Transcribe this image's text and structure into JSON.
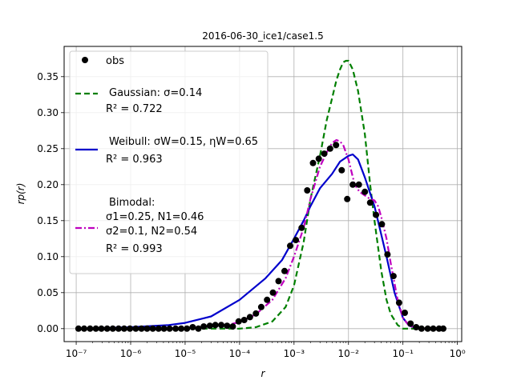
{
  "chart_data": {
    "type": "line",
    "title": "2016-06-30_ice1/case1.5",
    "xlabel": "r",
    "ylabel": "rp(r)",
    "x_scale": "log",
    "xlim": [
      6e-08,
      1.2
    ],
    "ylim": [
      -0.018,
      0.392
    ],
    "grid": true,
    "legend_position": "upper-left",
    "x_ticks": [
      {
        "value": 1e-07,
        "label": "10⁻⁷"
      },
      {
        "value": 1e-06,
        "label": "10⁻⁶"
      },
      {
        "value": 1e-05,
        "label": "10⁻⁵"
      },
      {
        "value": 0.0001,
        "label": "10⁻⁴"
      },
      {
        "value": 0.001,
        "label": "10⁻³"
      },
      {
        "value": 0.01,
        "label": "10⁻²"
      },
      {
        "value": 0.1,
        "label": "10⁻¹"
      },
      {
        "value": 1,
        "label": "10⁰"
      }
    ],
    "y_ticks": [
      {
        "value": 0.0,
        "label": "0.00"
      },
      {
        "value": 0.05,
        "label": "0.05"
      },
      {
        "value": 0.1,
        "label": "0.10"
      },
      {
        "value": 0.15,
        "label": "0.15"
      },
      {
        "value": 0.2,
        "label": "0.20"
      },
      {
        "value": 0.25,
        "label": "0.25"
      },
      {
        "value": 0.3,
        "label": "0.30"
      },
      {
        "value": 0.35,
        "label": "0.35"
      }
    ],
    "series": [
      {
        "name": "obs",
        "kind": "points",
        "color": "#000000",
        "x": [
          1.1e-07,
          1.4e-07,
          1.8e-07,
          2.3e-07,
          2.9e-07,
          3.7e-07,
          4.7e-07,
          6e-07,
          7.6e-07,
          9.7e-07,
          1.24e-06,
          1.58e-06,
          2e-06,
          2.55e-06,
          3.25e-06,
          4.1e-06,
          5.2e-06,
          6.7e-06,
          8.5e-06,
          1.08e-05,
          1.38e-05,
          1.75e-05,
          2.2e-05,
          2.85e-05,
          3.6e-05,
          4.6e-05,
          5.9e-05,
          7.5e-05,
          9.6e-05,
          0.000122,
          0.000155,
          0.0002,
          0.00025,
          0.00032,
          0.00041,
          0.00052,
          0.00067,
          0.00085,
          0.00108,
          0.00138,
          0.00175,
          0.00223,
          0.00285,
          0.0036,
          0.0046,
          0.0059,
          0.0075,
          0.0095,
          0.012,
          0.0155,
          0.02,
          0.025,
          0.032,
          0.041,
          0.052,
          0.067,
          0.085,
          0.108,
          0.138,
          0.175,
          0.22,
          0.285,
          0.36,
          0.46,
          0.55
        ],
        "y": [
          0.0,
          0.0,
          0.0,
          0.0,
          0.0,
          0.0,
          0.0,
          0.0,
          0.0,
          0.0,
          0.0,
          0.0,
          0.0,
          0.0,
          0.0,
          0.0,
          0.0,
          0.0,
          0.0,
          0.0,
          0.002,
          0.0,
          0.003,
          0.004,
          0.005,
          0.005,
          0.004,
          0.003,
          0.01,
          0.012,
          0.016,
          0.021,
          0.03,
          0.04,
          0.05,
          0.066,
          0.08,
          0.115,
          0.123,
          0.14,
          0.192,
          0.23,
          0.236,
          0.243,
          0.25,
          0.255,
          0.22,
          0.18,
          0.2,
          0.2,
          0.19,
          0.175,
          0.158,
          0.145,
          0.103,
          0.073,
          0.036,
          0.022,
          0.007,
          0.002,
          0.0,
          0.0,
          0.0,
          0.0,
          0.0
        ]
      },
      {
        "name": "Gaussian",
        "kind": "line",
        "dash": "dashed",
        "color": "#007f00",
        "x": [
          1.1e-07,
          1e-06,
          1e-05,
          5e-05,
          0.0001,
          0.0002,
          0.0004,
          0.0007,
          0.001,
          0.0015,
          0.002,
          0.003,
          0.004,
          0.005,
          0.006,
          0.007,
          0.008,
          0.009,
          0.01,
          0.012,
          0.015,
          0.02,
          0.025,
          0.03,
          0.04,
          0.05,
          0.06,
          0.08,
          0.1,
          0.13,
          0.2,
          0.3,
          0.55
        ],
        "y": [
          0.0,
          0.0,
          0.0,
          0.0,
          0.0,
          0.002,
          0.01,
          0.03,
          0.06,
          0.12,
          0.18,
          0.24,
          0.29,
          0.32,
          0.345,
          0.36,
          0.37,
          0.372,
          0.372,
          0.36,
          0.33,
          0.27,
          0.2,
          0.15,
          0.08,
          0.04,
          0.02,
          0.005,
          0.0,
          0.0,
          0.0,
          0.0,
          0.0
        ]
      },
      {
        "name": "Weibull",
        "kind": "line",
        "dash": "solid",
        "color": "#0000cc",
        "x": [
          1.1e-07,
          1e-06,
          5e-06,
          1e-05,
          3e-05,
          0.0001,
          0.0003,
          0.0006,
          0.001,
          0.0015,
          0.002,
          0.003,
          0.005,
          0.007,
          0.01,
          0.012,
          0.015,
          0.02,
          0.03,
          0.05,
          0.07,
          0.1,
          0.13,
          0.2,
          0.3,
          0.5
        ],
        "y": [
          0.0,
          0.002,
          0.005,
          0.008,
          0.017,
          0.04,
          0.07,
          0.095,
          0.125,
          0.15,
          0.17,
          0.195,
          0.215,
          0.232,
          0.24,
          0.242,
          0.235,
          0.21,
          0.17,
          0.1,
          0.05,
          0.015,
          0.004,
          0.0,
          0.0,
          0.0
        ]
      },
      {
        "name": "Bimodal",
        "kind": "line",
        "dash": "dashdot",
        "color": "#bf00bf",
        "x": [
          1.1e-07,
          1e-06,
          1e-05,
          5e-05,
          0.0001,
          0.0002,
          0.0004,
          0.0007,
          0.001,
          0.0015,
          0.002,
          0.003,
          0.004,
          0.005,
          0.006,
          0.007,
          0.008,
          0.01,
          0.013,
          0.016,
          0.02,
          0.025,
          0.03,
          0.035,
          0.04,
          0.05,
          0.06,
          0.08,
          0.1,
          0.13,
          0.2,
          0.3,
          0.55
        ],
        "y": [
          0.0,
          0.0,
          0.001,
          0.004,
          0.009,
          0.02,
          0.04,
          0.07,
          0.1,
          0.14,
          0.18,
          0.225,
          0.245,
          0.258,
          0.262,
          0.26,
          0.255,
          0.235,
          0.2,
          0.19,
          0.185,
          0.18,
          0.178,
          0.17,
          0.155,
          0.125,
          0.09,
          0.04,
          0.015,
          0.004,
          0.0,
          0.0,
          0.0
        ]
      }
    ]
  },
  "legend": {
    "obs": "obs",
    "gaussian": {
      "line1": "Gaussian: σ=0.14",
      "line2": "R² = 0.722"
    },
    "weibull": {
      "line1": "Weibull: σW=0.15, ηW=0.65",
      "line2": "R² = 0.963"
    },
    "bimodal": {
      "line1": "Bimodal:",
      "line2": "σ1=0.25, N1=0.46",
      "line3": "σ2=0.1, N2=0.54",
      "line4": "R² = 0.993"
    }
  }
}
